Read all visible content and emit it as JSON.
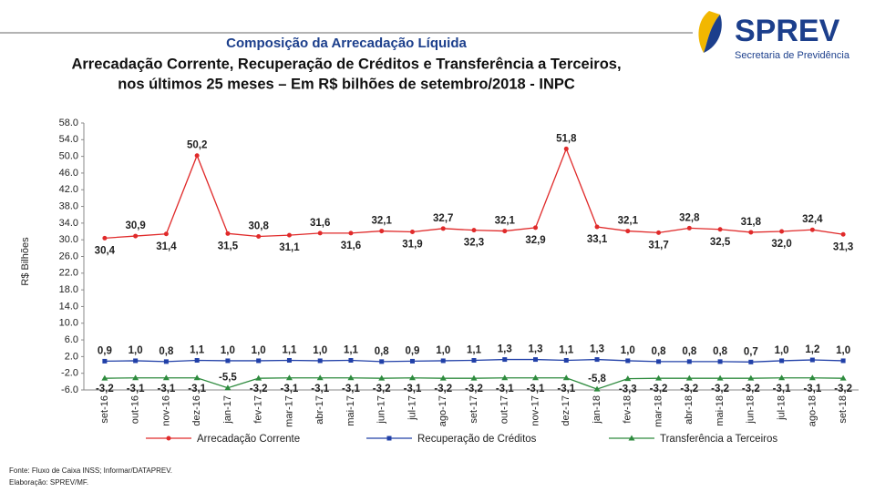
{
  "logo": {
    "name": "SPREV",
    "subtitle": "Secretaria de Previdência"
  },
  "chart_data": {
    "type": "line",
    "title": "Composição da Arrecadação Líquida",
    "subtitle": [
      "Arrecadação Corrente, Recuperação de Créditos e Transferência a Terceiros,",
      "nos últimos 25 meses – Em R$ bilhões de setembro/2018 - INPC"
    ],
    "y_label": "R$ Bilhões",
    "categories": [
      "set-16",
      "out-16",
      "nov-16",
      "dez-16",
      "jan-17",
      "fev-17",
      "mar-17",
      "abr-17",
      "mai-17",
      "jun-17",
      "jul-17",
      "ago-17",
      "set-17",
      "out-17",
      "nov-17",
      "dez-17",
      "jan-18",
      "fev-18",
      "mar-18",
      "abr-18",
      "mai-18",
      "jun-18",
      "jul-18",
      "ago-18",
      "set-18"
    ],
    "series": [
      {
        "name": "Arrecadação Corrente",
        "color": "#e02a2a",
        "values": [
          30.4,
          30.9,
          31.4,
          50.2,
          31.5,
          30.8,
          31.1,
          31.6,
          31.6,
          32.1,
          31.9,
          32.7,
          32.3,
          32.1,
          32.9,
          51.8,
          33.1,
          32.1,
          31.7,
          32.8,
          32.5,
          31.8,
          32.0,
          32.4,
          31.3
        ],
        "value_labels": [
          "30,4",
          "30,9",
          "31,4",
          "50,2",
          "31,5",
          "30,8",
          "31,1",
          "31,6",
          "31,6",
          "32,1",
          "31,9",
          "32,7",
          "32,3",
          "32,1",
          "32,9",
          "51,8",
          "33,1",
          "32,1",
          "31,7",
          "32,8",
          "32,5",
          "31,8",
          "32,0",
          "32,4",
          "31,3"
        ]
      },
      {
        "name": "Recuperação de Créditos",
        "color": "#2140a8",
        "values": [
          0.9,
          1.0,
          0.8,
          1.1,
          1.0,
          1.0,
          1.1,
          1.0,
          1.1,
          0.8,
          0.9,
          1.0,
          1.1,
          1.3,
          1.3,
          1.1,
          1.3,
          1.0,
          0.8,
          0.8,
          0.8,
          0.7,
          1.0,
          1.2,
          1.0
        ],
        "value_labels": [
          "0,9",
          "1,0",
          "0,8",
          "1,1",
          "1,0",
          "1,0",
          "1,1",
          "1,0",
          "1,1",
          "0,8",
          "0,9",
          "1,0",
          "1,1",
          "1,3",
          "1,3",
          "1,1",
          "1,3",
          "1,0",
          "0,8",
          "0,8",
          "0,8",
          "0,7",
          "1,0",
          "1,2",
          "1,0"
        ]
      },
      {
        "name": "Transferência a Terceiros",
        "color": "#2e8b3e",
        "values": [
          -3.2,
          -3.1,
          -3.1,
          -3.1,
          -5.5,
          -3.2,
          -3.1,
          -3.1,
          -3.1,
          -3.2,
          -3.1,
          -3.2,
          -3.2,
          -3.1,
          -3.1,
          -3.1,
          -5.8,
          -3.3,
          -3.2,
          -3.2,
          -3.2,
          -3.2,
          -3.1,
          -3.1,
          -3.2
        ],
        "value_labels": [
          "-3,2",
          "-3,1",
          "-3,1",
          "-3,1",
          "-5,5",
          "-3,2",
          "-3,1",
          "-3,1",
          "-3,1",
          "-3,2",
          "-3,1",
          "-3,2",
          "-3,2",
          "-3,1",
          "-3,1",
          "-3,1",
          "-5,8",
          "-3,3",
          "-3,2",
          "-3,2",
          "-3,2",
          "-3,2",
          "-3,1",
          "-3,1",
          "-3,2"
        ]
      }
    ],
    "ylim": [
      -6,
      58
    ],
    "yticks": [
      {
        "value": 58,
        "label": "58.0"
      },
      {
        "value": 54,
        "label": "54.0"
      },
      {
        "value": 50,
        "label": "50.0"
      },
      {
        "value": 46,
        "label": "46.0"
      },
      {
        "value": 42,
        "label": "42.0"
      },
      {
        "value": 38,
        "label": "38.0"
      },
      {
        "value": 34,
        "label": "34.0"
      },
      {
        "value": 30,
        "label": "30.0"
      },
      {
        "value": 26,
        "label": "26.0"
      },
      {
        "value": 22,
        "label": "22.0"
      },
      {
        "value": 18,
        "label": "18.0"
      },
      {
        "value": 14,
        "label": "14.0"
      },
      {
        "value": 10,
        "label": "10.0"
      },
      {
        "value": 6,
        "label": "6.0"
      },
      {
        "value": 2,
        "label": "2.0"
      },
      {
        "value": -2,
        "label": "-2.0"
      },
      {
        "value": -6,
        "label": "-6.0"
      }
    ],
    "grid": false,
    "legend": "bottom",
    "source": "Fonte: Fluxo de Caixa INSS; Informar/DATAPREV.",
    "credit": "Elaboração: SPREV/MF."
  }
}
